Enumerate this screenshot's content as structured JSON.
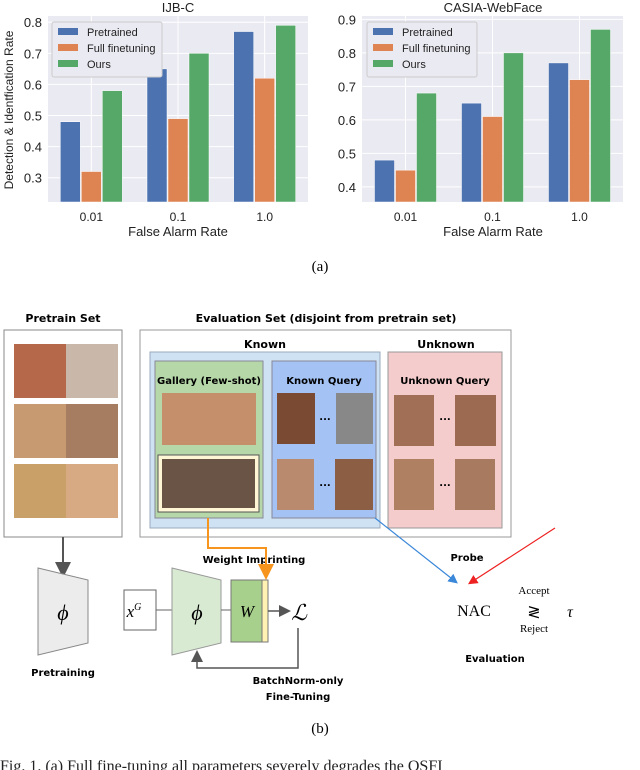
{
  "chart_data": [
    {
      "type": "bar",
      "title": "IJB-C",
      "xlabel": "False Alarm Rate",
      "ylabel": "Detection & Identfication Rate",
      "categories": [
        "0.01",
        "0.1",
        "1.0"
      ],
      "ylim": [
        0.222,
        0.82
      ],
      "yticks": [
        "0.3",
        "0.4",
        "0.5",
        "0.6",
        "0.7",
        "0.8"
      ],
      "grid": true,
      "legend": "top-left",
      "series": [
        {
          "name": "Pretrained",
          "color": "#4c72b0",
          "values": [
            0.48,
            0.65,
            0.77
          ]
        },
        {
          "name": "Full finetuning",
          "color": "#dd8452",
          "values": [
            0.32,
            0.49,
            0.62
          ]
        },
        {
          "name": "Ours",
          "color": "#55a868",
          "values": [
            0.58,
            0.7,
            0.79
          ]
        }
      ]
    },
    {
      "type": "bar",
      "title": "CASIA-WebFace",
      "xlabel": "False Alarm Rate",
      "ylabel": "",
      "categories": [
        "0.01",
        "0.1",
        "1.0"
      ],
      "ylim": [
        0.355,
        0.91
      ],
      "yticks": [
        "0.4",
        "0.5",
        "0.6",
        "0.7",
        "0.8",
        "0.9"
      ],
      "grid": true,
      "legend": "top-left",
      "series": [
        {
          "name": "Pretrained",
          "color": "#4c72b0",
          "values": [
            0.48,
            0.65,
            0.77
          ]
        },
        {
          "name": "Full finetuning",
          "color": "#dd8452",
          "values": [
            0.45,
            0.61,
            0.72
          ]
        },
        {
          "name": "Ours",
          "color": "#55a868",
          "values": [
            0.68,
            0.8,
            0.87
          ]
        }
      ]
    }
  ],
  "subfig_a": "(a)",
  "subfig_b": "(b)",
  "diagram": {
    "pretrain_set": "Pretrain Set",
    "evaluation_set": "Evaluation Set (disjoint from pretrain set)",
    "known": "Known",
    "unknown": "Unknown",
    "gallery": "Gallery (Few-shot)",
    "known_query": "Known Query",
    "unknown_query": "Unknown Query",
    "ellipsis": "...",
    "weight_imprinting": "Weight Imprinting",
    "pretraining": "Pretraining",
    "batchnorm_line1": "BatchNorm-only",
    "batchnorm_line2": "Fine-Tuning",
    "probe": "Probe",
    "evaluation": "Evaluation",
    "phi": "ϕ",
    "input": "x",
    "input_sup": "G",
    "weights": "W",
    "loss": "ℒ",
    "nac": "NAC",
    "accept": "Accept",
    "reject": "Reject",
    "compare": "≷",
    "tau": "τ",
    "colors": {
      "imprint_arrow": "#f7941d",
      "known_arrow": "#3b87d9",
      "unknown_arrow": "#ee2222",
      "known_bg": "#cfe2f3",
      "gallery_bg": "#b6d7a8",
      "known_query_bg": "#a4c2f4",
      "unknown_bg": "#f4cccc"
    }
  },
  "caption": "Fig. 1.   (a) Full fine-tuning all parameters severely degrades the OSFI"
}
